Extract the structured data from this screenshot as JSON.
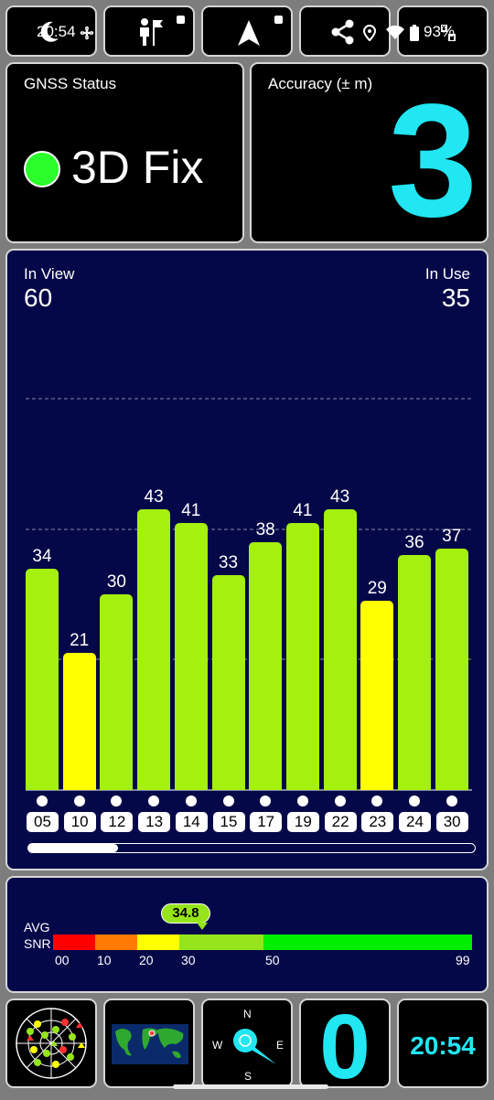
{
  "status_bar": {
    "time": "20:54",
    "battery": "93%",
    "tiles": [
      {
        "name": "night-mode",
        "icon": "moon-icon"
      },
      {
        "name": "hiker",
        "icon": "hiker-flag-icon"
      },
      {
        "name": "navigation",
        "icon": "navigation-arrow-icon"
      },
      {
        "name": "share",
        "icon": "share-icon"
      }
    ]
  },
  "gnss_status": {
    "title": "GNSS Status",
    "fix": "3D Fix",
    "fix_color": "#2bff2b"
  },
  "accuracy": {
    "title": "Accuracy (± m)",
    "value": "3"
  },
  "satellites": {
    "in_view_label": "In View",
    "in_view": "60",
    "in_use_label": "In Use",
    "in_use": "35"
  },
  "chart_data": {
    "type": "bar",
    "categories": [
      "05",
      "10",
      "12",
      "13",
      "14",
      "15",
      "17",
      "19",
      "22",
      "23",
      "24",
      "30"
    ],
    "values": [
      34,
      21,
      30,
      43,
      41,
      33,
      38,
      41,
      43,
      29,
      36,
      37
    ],
    "ylim": [
      0,
      60
    ],
    "grid": true,
    "colors": {
      "strong": "#a4f00e",
      "medium": "#ffff00"
    }
  },
  "snr": {
    "label_line1": "AVG",
    "label_line2": "SNR",
    "avg_value": "34.8",
    "ticks": [
      "00",
      "10",
      "20",
      "30",
      "50",
      "99"
    ],
    "segment_colors": [
      "#ff0000",
      "#ff7a00",
      "#ffff00",
      "#96e51c",
      "#00ee00"
    ]
  },
  "bottom": {
    "sky_view_icon": "sky-plot-icon",
    "world_map_icon": "world-map-icon",
    "compass": {
      "n": "N",
      "s": "S",
      "e": "E",
      "w": "W"
    },
    "count": "0",
    "clock": "20:54"
  }
}
